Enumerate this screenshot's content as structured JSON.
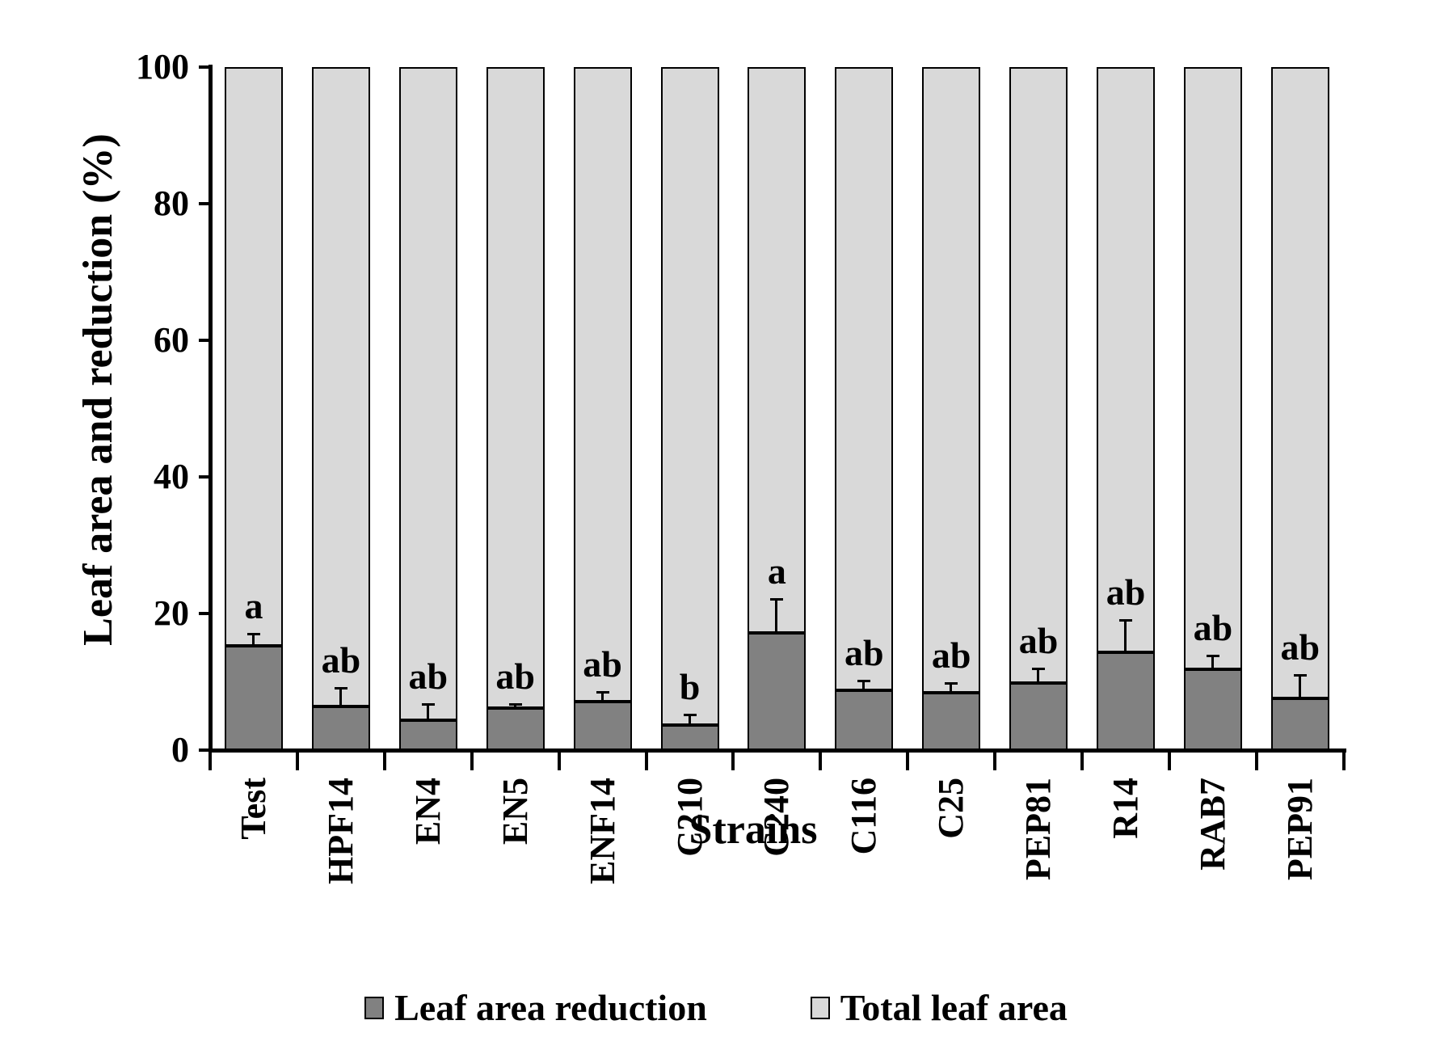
{
  "chart_data": {
    "type": "stacked-bar",
    "title": "",
    "xlabel": "Strains",
    "ylabel": "Leaf area and reduction (%)",
    "ylim": [
      0,
      100
    ],
    "yticks": [
      0,
      20,
      40,
      60,
      80,
      100
    ],
    "grid": false,
    "legend_position": "bottom",
    "categories": [
      "Test",
      "HPF14",
      "EN4",
      "EN5",
      "ENF14",
      "C210",
      "C240",
      "C116",
      "C25",
      "PEP81",
      "R14",
      "RAB7",
      "PEP91"
    ],
    "series": [
      {
        "name": "Leaf area reduction",
        "color": "#818181",
        "values": [
          15.3,
          6.4,
          4.4,
          6.2,
          7.1,
          3.7,
          17.2,
          8.7,
          8.4,
          9.8,
          14.3,
          11.8,
          7.6
        ],
        "errors": [
          1.7,
          2.7,
          2.3,
          0.6,
          1.4,
          1.5,
          4.9,
          1.5,
          1.4,
          2.1,
          4.8,
          2.1,
          3.4
        ],
        "letters": [
          "a",
          "ab",
          "ab",
          "ab",
          "ab",
          "b",
          "a",
          "ab",
          "ab",
          "ab",
          "ab",
          "ab",
          "ab"
        ]
      },
      {
        "name": "Total leaf area",
        "color": "#d9d9d9",
        "values": [
          84.7,
          93.6,
          95.6,
          93.8,
          92.9,
          96.3,
          82.8,
          91.3,
          91.6,
          90.2,
          85.7,
          88.2,
          92.4
        ]
      }
    ]
  }
}
